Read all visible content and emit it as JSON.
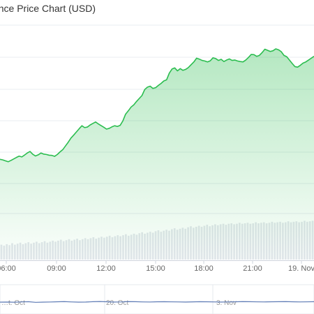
{
  "chart_data": {
    "type": "area",
    "title": "…nce Price Chart (USD)",
    "main": {
      "x_tick_labels": [
        "06:00",
        "09:00",
        "12:00",
        "15:00",
        "18:00",
        "21:00",
        "19. Nov"
      ],
      "price_series": [
        0.268,
        0.265,
        0.26,
        0.255,
        0.262,
        0.27,
        0.278,
        0.285,
        0.281,
        0.291,
        0.302,
        0.31,
        0.295,
        0.286,
        0.292,
        0.302,
        0.296,
        0.294,
        0.29,
        0.289,
        0.284,
        0.294,
        0.308,
        0.32,
        0.34,
        0.36,
        0.382,
        0.398,
        0.415,
        0.432,
        0.448,
        0.438,
        0.441,
        0.452,
        0.46,
        0.468,
        0.458,
        0.449,
        0.44,
        0.43,
        0.434,
        0.442,
        0.448,
        0.444,
        0.45,
        0.474,
        0.51,
        0.528,
        0.548,
        0.56,
        0.578,
        0.594,
        0.61,
        0.642,
        0.655,
        0.66,
        0.648,
        0.652,
        0.664,
        0.675,
        0.688,
        0.694,
        0.73,
        0.752,
        0.758,
        0.742,
        0.754,
        0.745,
        0.75,
        0.76,
        0.775,
        0.79,
        0.81,
        0.805,
        0.798,
        0.795,
        0.79,
        0.796,
        0.812,
        0.808,
        0.798,
        0.804,
        0.792,
        0.8,
        0.806,
        0.798,
        0.8,
        0.795,
        0.792,
        0.79,
        0.8,
        0.814,
        0.83,
        0.829,
        0.82,
        0.825,
        0.84,
        0.858,
        0.852,
        0.846,
        0.85,
        0.86,
        0.855,
        0.845,
        0.825,
        0.818,
        0.8,
        0.782,
        0.765,
        0.762,
        0.772,
        0.784,
        0.79,
        0.8,
        0.81,
        0.82
      ],
      "volume_series": [
        0.3,
        0.28,
        0.31,
        0.29,
        0.33,
        0.3,
        0.32,
        0.34,
        0.31,
        0.33,
        0.35,
        0.32,
        0.34,
        0.36,
        0.33,
        0.35,
        0.37,
        0.34,
        0.36,
        0.38,
        0.36,
        0.38,
        0.4,
        0.37,
        0.39,
        0.41,
        0.38,
        0.4,
        0.42,
        0.39,
        0.41,
        0.43,
        0.41,
        0.43,
        0.45,
        0.42,
        0.44,
        0.46,
        0.44,
        0.46,
        0.48,
        0.45,
        0.47,
        0.49,
        0.47,
        0.49,
        0.51,
        0.48,
        0.5,
        0.52,
        0.5,
        0.53,
        0.55,
        0.52,
        0.54,
        0.56,
        0.54,
        0.57,
        0.59,
        0.56,
        0.58,
        0.6,
        0.58,
        0.61,
        0.63,
        0.6,
        0.62,
        0.64,
        0.62,
        0.65,
        0.67,
        0.64,
        0.66,
        0.68,
        0.66,
        0.68,
        0.7,
        0.67,
        0.69,
        0.71,
        0.69,
        0.71,
        0.72,
        0.7,
        0.72,
        0.73,
        0.71,
        0.72,
        0.74,
        0.72,
        0.73,
        0.74,
        0.72,
        0.73,
        0.75,
        0.73,
        0.74,
        0.75,
        0.73,
        0.74,
        0.76,
        0.74,
        0.75,
        0.76,
        0.74,
        0.75,
        0.77,
        0.75,
        0.76,
        0.77,
        0.75,
        0.76,
        0.78,
        0.76,
        0.77,
        0.78
      ]
    },
    "navigator": {
      "x_tick_labels": [
        "…t. Oct",
        "20. Oct",
        "3. Nov"
      ],
      "series": [
        0.5,
        0.52,
        0.48,
        0.55,
        0.6,
        0.45,
        0.5,
        0.53,
        0.58,
        0.62,
        0.55,
        0.5,
        0.52,
        0.6,
        0.65,
        0.58,
        0.52,
        0.55,
        0.62,
        0.6,
        0.55,
        0.53,
        0.58,
        0.6,
        0.57,
        0.55,
        0.52,
        0.56,
        0.6,
        0.58,
        0.55,
        0.52,
        0.55,
        0.58,
        0.62,
        0.6,
        0.57,
        0.55,
        0.58,
        0.6,
        0.62,
        0.58,
        0.55,
        0.57,
        0.6
      ]
    },
    "colors": {
      "line": "#2bbd4f",
      "area_top": "#2bbd4f",
      "volume": "#e3e6ec",
      "grid": "#e9ecf1",
      "navigator_line": "#5e7bb5"
    },
    "grid": true,
    "legend": "none"
  }
}
